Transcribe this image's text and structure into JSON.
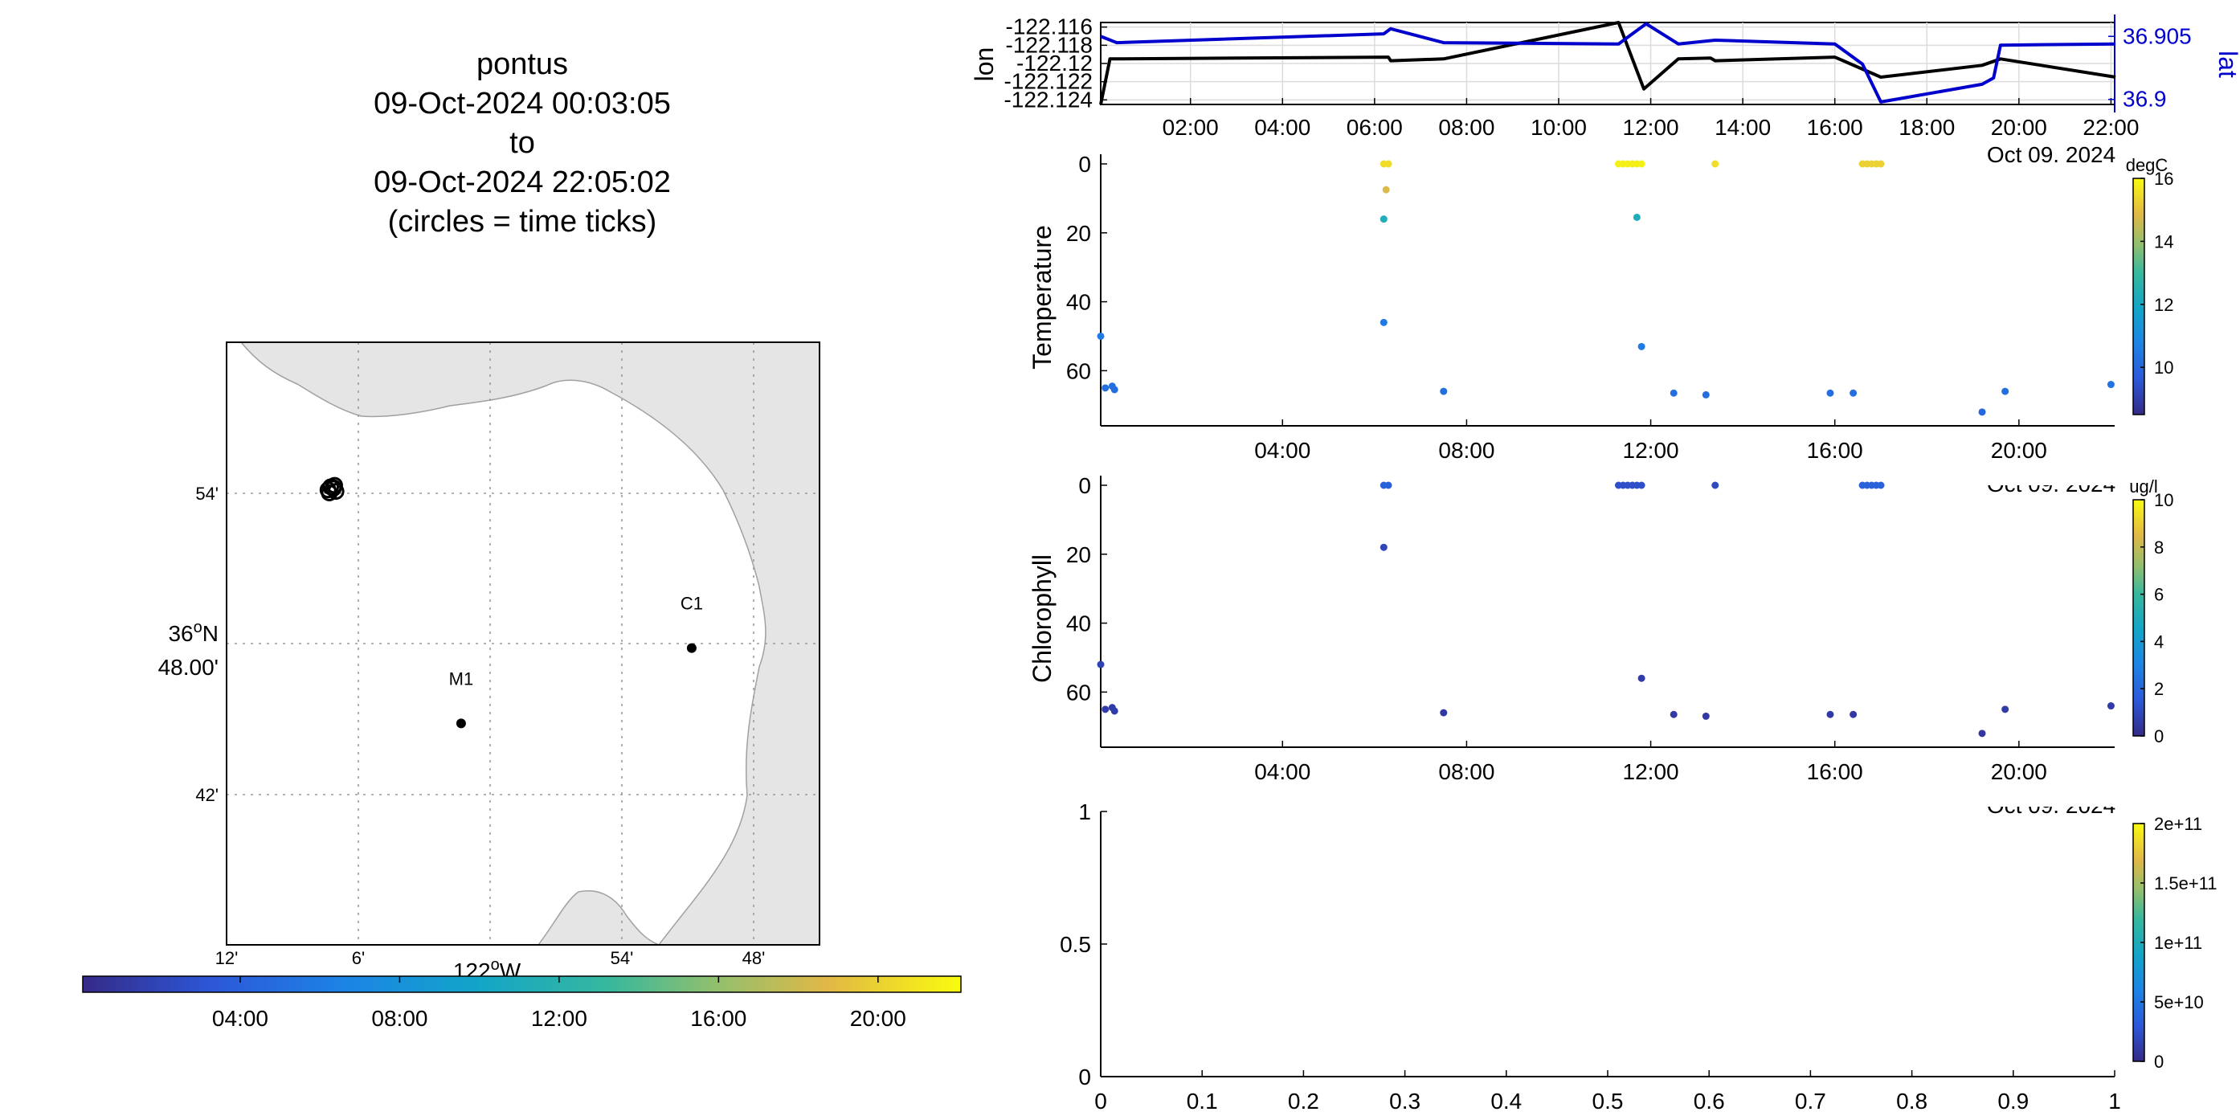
{
  "title": {
    "lines": [
      "pontus",
      "09-Oct-2024 00:03:05",
      "to",
      "09-Oct-2024 22:05:02",
      "(circles = time ticks)"
    ]
  },
  "chart_data": [
    {
      "id": "map",
      "type": "scatter",
      "lat_ticks": [
        "54'",
        "36°N 48.00'",
        "42'"
      ],
      "lon_ticks": [
        "12'",
        "6'",
        "122°W",
        "54'",
        "48'"
      ],
      "lat_tick_values": [
        36.9,
        36.8,
        36.7
      ],
      "lon_tick_values": [
        -122.2,
        -122.1,
        -122.0,
        -121.9,
        -121.8
      ],
      "xlim": [
        -122.2,
        -121.75
      ],
      "ylim": [
        36.6,
        37.0
      ],
      "grid": true,
      "stations": [
        {
          "name": "C1",
          "lon": -121.847,
          "lat": 36.797
        },
        {
          "name": "M1",
          "lon": -122.022,
          "lat": 36.747
        }
      ],
      "track": [
        {
          "lon": -122.121,
          "lat": 36.904
        },
        {
          "lon": -122.118,
          "lat": 36.905
        },
        {
          "lon": -122.119,
          "lat": 36.903
        },
        {
          "lon": -122.123,
          "lat": 36.902
        },
        {
          "lon": -122.117,
          "lat": 36.901
        },
        {
          "lon": -122.122,
          "lat": 36.9
        },
        {
          "lon": -122.119,
          "lat": 36.9035
        }
      ],
      "colorbar": {
        "colormap": "parula",
        "ticks": [
          "04:00",
          "08:00",
          "12:00",
          "16:00",
          "20:00"
        ],
        "range_hours": [
          0.05,
          22.08
        ]
      }
    },
    {
      "id": "position",
      "type": "line",
      "series": [
        {
          "name": "lon",
          "color": "#000000",
          "x": [
            0.05,
            0.25,
            6.3,
            6.35,
            7.5,
            11.3,
            11.85,
            12.6,
            13.3,
            13.4,
            16.0,
            17.0,
            19.2,
            19.6,
            22.1
          ],
          "y": [
            -122.1245,
            -122.1195,
            -122.1193,
            -122.1197,
            -122.1195,
            -122.1155,
            -122.1228,
            -122.1195,
            -122.1194,
            -122.1197,
            -122.1193,
            -122.1215,
            -122.1202,
            -122.1195,
            -122.1215
          ]
        },
        {
          "name": "lat",
          "color": "#0000cc",
          "x": [
            0.05,
            0.4,
            6.2,
            6.35,
            7.5,
            11.3,
            11.9,
            12.6,
            13.4,
            16.0,
            16.6,
            17.0,
            19.2,
            19.45,
            19.6,
            22.1
          ],
          "y": [
            36.905,
            36.9045,
            36.9052,
            36.9056,
            36.9045,
            36.9044,
            36.906,
            36.9044,
            36.9047,
            36.9044,
            36.9028,
            36.8998,
            36.9012,
            36.9017,
            36.9043,
            36.9044
          ]
        }
      ],
      "left_ticks": [
        "-122.116",
        "-122.118",
        "-122.12",
        "-122.122",
        "-122.124"
      ],
      "left_tick_values": [
        -122.116,
        -122.118,
        -122.12,
        -122.122,
        -122.124
      ],
      "right_ticks": [
        "36.905",
        "36.9"
      ],
      "right_tick_values": [
        36.905,
        36.9
      ],
      "ylabel_left": "lon",
      "ylabel_right": "lat",
      "ylim_left": [
        -122.1245,
        -122.1155
      ],
      "ylim_right": [
        36.8996,
        36.9061
      ],
      "xlim_hours": [
        0.05,
        22.08
      ],
      "x_ticks": [
        "02:00",
        "04:00",
        "06:00",
        "08:00",
        "10:00",
        "12:00",
        "14:00",
        "16:00",
        "18:00",
        "20:00",
        "22:00"
      ],
      "x_tick_hours": [
        2,
        4,
        6,
        8,
        10,
        12,
        14,
        16,
        18,
        20,
        22
      ],
      "date_label": "Oct 09. 2024",
      "grid": true
    },
    {
      "id": "temperature",
      "type": "scatter",
      "ylabel": "Temperature",
      "unit": "degC",
      "ylim": [
        0,
        76
      ],
      "y_reversed": true,
      "y_ticks": [
        0,
        20,
        40,
        60
      ],
      "xlim_hours": [
        0.05,
        22.08
      ],
      "x_ticks": [
        "04:00",
        "08:00",
        "12:00",
        "16:00",
        "20:00"
      ],
      "x_tick_hours": [
        4,
        8,
        12,
        16,
        20
      ],
      "date_label": "Oct 09. 2024",
      "clim": [
        8.5,
        16
      ],
      "cbar_ticks": [
        10,
        12,
        14,
        16
      ],
      "points": [
        {
          "x": 0.05,
          "y": 50,
          "v": 10.5
        },
        {
          "x": 0.15,
          "y": 65,
          "v": 10.2
        },
        {
          "x": 0.3,
          "y": 64.5,
          "v": 10.2
        },
        {
          "x": 0.35,
          "y": 65.5,
          "v": 10.2
        },
        {
          "x": 6.2,
          "y": 0,
          "v": 15.5
        },
        {
          "x": 6.3,
          "y": 0,
          "v": 15.5
        },
        {
          "x": 6.25,
          "y": 7.5,
          "v": 14.8
        },
        {
          "x": 6.2,
          "y": 16,
          "v": 12.3
        },
        {
          "x": 6.2,
          "y": 46,
          "v": 10.5
        },
        {
          "x": 7.5,
          "y": 66,
          "v": 10.2
        },
        {
          "x": 11.3,
          "y": 0,
          "v": 15.8
        },
        {
          "x": 11.4,
          "y": 0,
          "v": 15.8
        },
        {
          "x": 11.5,
          "y": 0,
          "v": 15.8
        },
        {
          "x": 11.6,
          "y": 0,
          "v": 15.8
        },
        {
          "x": 11.7,
          "y": 0,
          "v": 15.8
        },
        {
          "x": 11.8,
          "y": 0,
          "v": 15.8
        },
        {
          "x": 11.7,
          "y": 15.5,
          "v": 12.3
        },
        {
          "x": 11.8,
          "y": 53,
          "v": 10.5
        },
        {
          "x": 12.5,
          "y": 66.5,
          "v": 10.2
        },
        {
          "x": 13.2,
          "y": 67,
          "v": 10.2
        },
        {
          "x": 13.4,
          "y": 0,
          "v": 15.5
        },
        {
          "x": 15.9,
          "y": 66.5,
          "v": 10.2
        },
        {
          "x": 16.4,
          "y": 66.5,
          "v": 10.2
        },
        {
          "x": 16.6,
          "y": 0,
          "v": 15.3
        },
        {
          "x": 16.7,
          "y": 0,
          "v": 15.3
        },
        {
          "x": 16.8,
          "y": 0,
          "v": 15.3
        },
        {
          "x": 16.9,
          "y": 0,
          "v": 15.3
        },
        {
          "x": 17.0,
          "y": 0,
          "v": 15.3
        },
        {
          "x": 19.2,
          "y": 72,
          "v": 10.0
        },
        {
          "x": 19.7,
          "y": 66,
          "v": 10.2
        },
        {
          "x": 22.0,
          "y": 64,
          "v": 10.3
        }
      ]
    },
    {
      "id": "chlorophyll",
      "type": "scatter",
      "ylabel": "Chlorophyll",
      "unit": "ug/l",
      "ylim": [
        0,
        76
      ],
      "y_reversed": true,
      "y_ticks": [
        0,
        20,
        40,
        60
      ],
      "xlim_hours": [
        0.05,
        22.08
      ],
      "x_ticks": [
        "04:00",
        "08:00",
        "12:00",
        "16:00",
        "20:00"
      ],
      "x_tick_hours": [
        4,
        8,
        12,
        16,
        20
      ],
      "date_label": "Oct 09. 2024",
      "clim": [
        0,
        10
      ],
      "cbar_ticks": [
        0,
        2,
        4,
        6,
        8,
        10
      ],
      "points": [
        {
          "x": 0.05,
          "y": 52,
          "v": 0.8
        },
        {
          "x": 0.15,
          "y": 65,
          "v": 0.6
        },
        {
          "x": 0.3,
          "y": 64.5,
          "v": 0.6
        },
        {
          "x": 0.35,
          "y": 65.5,
          "v": 0.6
        },
        {
          "x": 6.2,
          "y": 0,
          "v": 1.8
        },
        {
          "x": 6.3,
          "y": 0,
          "v": 1.8
        },
        {
          "x": 6.2,
          "y": 18,
          "v": 0.9
        },
        {
          "x": 7.5,
          "y": 66,
          "v": 0.5
        },
        {
          "x": 11.3,
          "y": 0,
          "v": 1.2
        },
        {
          "x": 11.4,
          "y": 0,
          "v": 1.2
        },
        {
          "x": 11.5,
          "y": 0,
          "v": 1.2
        },
        {
          "x": 11.6,
          "y": 0,
          "v": 1.2
        },
        {
          "x": 11.7,
          "y": 0,
          "v": 1.2
        },
        {
          "x": 11.8,
          "y": 0,
          "v": 1.2
        },
        {
          "x": 11.8,
          "y": 56,
          "v": 0.6
        },
        {
          "x": 12.5,
          "y": 66.5,
          "v": 0.5
        },
        {
          "x": 13.2,
          "y": 67,
          "v": 0.5
        },
        {
          "x": 13.4,
          "y": 0,
          "v": 1.0
        },
        {
          "x": 15.9,
          "y": 66.5,
          "v": 0.5
        },
        {
          "x": 16.4,
          "y": 66.5,
          "v": 0.5
        },
        {
          "x": 16.6,
          "y": 0,
          "v": 1.8
        },
        {
          "x": 16.7,
          "y": 0,
          "v": 1.8
        },
        {
          "x": 16.8,
          "y": 0,
          "v": 1.8
        },
        {
          "x": 16.9,
          "y": 0,
          "v": 1.8
        },
        {
          "x": 17.0,
          "y": 0,
          "v": 1.8
        },
        {
          "x": 19.2,
          "y": 72,
          "v": 0.4
        },
        {
          "x": 19.7,
          "y": 65,
          "v": 0.6
        },
        {
          "x": 22.0,
          "y": 64,
          "v": 0.6
        }
      ]
    },
    {
      "id": "empty",
      "type": "scatter",
      "xlim": [
        0,
        1
      ],
      "ylim": [
        0,
        1
      ],
      "x_ticks": [
        "0",
        "0.1",
        "0.2",
        "0.3",
        "0.4",
        "0.5",
        "0.6",
        "0.7",
        "0.8",
        "0.9",
        "1"
      ],
      "x_tick_values": [
        0,
        0.1,
        0.2,
        0.3,
        0.4,
        0.5,
        0.6,
        0.7,
        0.8,
        0.9,
        1
      ],
      "y_ticks": [
        "0",
        "0.5",
        "1"
      ],
      "y_tick_values": [
        0,
        0.5,
        1
      ],
      "cbar_ticks": [
        "0",
        "5e+10",
        "1e+11",
        "1.5e+11",
        "2e+11"
      ],
      "cbar_tick_values": [
        0,
        50000000000,
        100000000000,
        150000000000,
        200000000000
      ],
      "clim": [
        0,
        200000000000
      ],
      "points": []
    }
  ]
}
